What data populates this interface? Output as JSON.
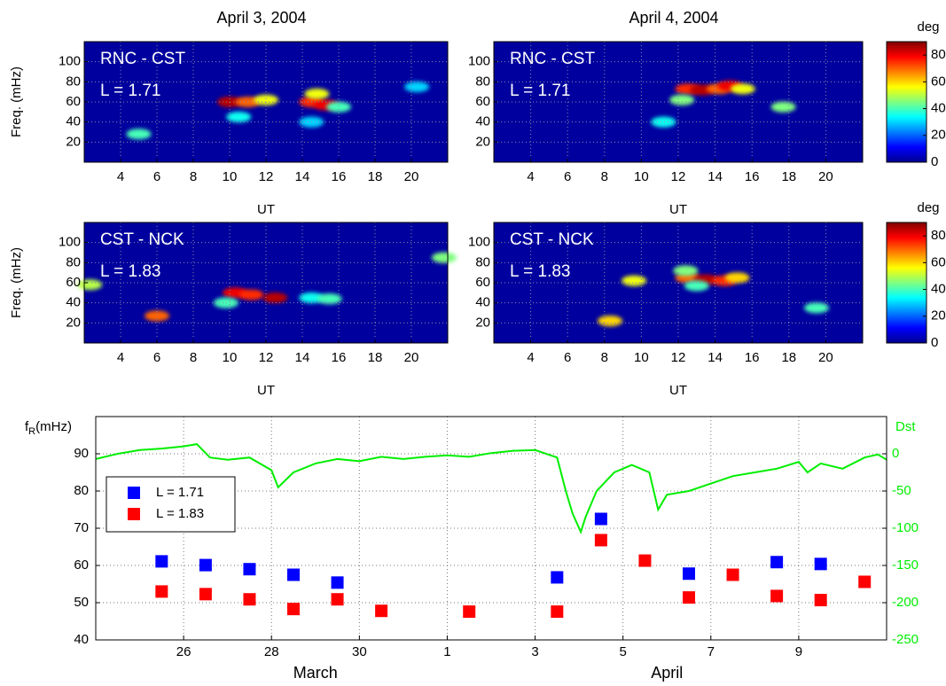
{
  "chart_data": [
    {
      "type": "spectrogram",
      "title": "April 3, 2004",
      "ylabel": "Freq. (mHz)",
      "xlabel": "UT",
      "annotations": [
        "RNC - CST",
        "L = 1.71"
      ],
      "xlim": [
        2,
        22
      ],
      "xticks": [
        4,
        6,
        8,
        10,
        12,
        14,
        16,
        18,
        20
      ],
      "ylim": [
        0,
        120
      ],
      "yticks": [
        20,
        40,
        60,
        80,
        100
      ],
      "grid": true,
      "colormap": "jet",
      "clim": [
        0,
        90
      ],
      "cells": {
        "ut": [
          10,
          11,
          12,
          14.5,
          15.3,
          14.8,
          16,
          10.5,
          20.3,
          5,
          14.5
        ],
        "freq": [
          60,
          60,
          62,
          60,
          57,
          68,
          55,
          45,
          75,
          28,
          40
        ],
        "values": [
          85,
          70,
          55,
          75,
          80,
          55,
          40,
          35,
          30,
          40,
          30
        ]
      }
    },
    {
      "type": "spectrogram",
      "title": "April 4, 2004",
      "xlabel": "UT",
      "annotations": [
        "RNC - CST",
        "L = 1.71"
      ],
      "xlim": [
        2,
        22
      ],
      "xticks": [
        4,
        6,
        8,
        10,
        12,
        14,
        16,
        18,
        20
      ],
      "ylim": [
        0,
        120
      ],
      "yticks": [
        20,
        40,
        60,
        80,
        100
      ],
      "grid": true,
      "colormap": "jet",
      "clim": [
        0,
        90
      ],
      "colorbar": {
        "label": "deg",
        "ticks": [
          0,
          20,
          40,
          60,
          80
        ]
      },
      "cells": {
        "ut": [
          12.5,
          13.3,
          14.2,
          14.8,
          12.2,
          15.5,
          11.2,
          17.7
        ],
        "freq": [
          73,
          72,
          73,
          76,
          62,
          73,
          40,
          55
        ],
        "values": [
          75,
          85,
          70,
          80,
          45,
          55,
          35,
          45
        ]
      }
    },
    {
      "type": "spectrogram",
      "ylabel": "Freq. (mHz)",
      "xlabel": "UT",
      "annotations": [
        "CST - NCK",
        "L = 1.83"
      ],
      "xlim": [
        2,
        22
      ],
      "xticks": [
        4,
        6,
        8,
        10,
        12,
        14,
        16,
        18,
        20
      ],
      "ylim": [
        0,
        120
      ],
      "yticks": [
        20,
        40,
        60,
        80,
        100
      ],
      "grid": true,
      "colormap": "jet",
      "clim": [
        0,
        90
      ],
      "cells": {
        "ut": [
          10.3,
          11.2,
          12.5,
          14.5,
          15.5,
          9.8,
          2.3,
          21.8,
          6
        ],
        "freq": [
          50,
          48,
          45,
          45,
          44,
          40,
          58,
          85,
          27
        ],
        "values": [
          80,
          75,
          85,
          35,
          40,
          40,
          50,
          45,
          70
        ]
      }
    },
    {
      "type": "spectrogram",
      "xlabel": "UT",
      "annotations": [
        "CST - NCK",
        "L = 1.83"
      ],
      "xlim": [
        2,
        22
      ],
      "xticks": [
        4,
        6,
        8,
        10,
        12,
        14,
        16,
        18,
        20
      ],
      "ylim": [
        0,
        120
      ],
      "yticks": [
        20,
        40,
        60,
        80,
        100
      ],
      "grid": true,
      "colormap": "jet",
      "clim": [
        0,
        90
      ],
      "colorbar": {
        "label": "deg",
        "ticks": [
          0,
          20,
          40,
          60,
          80
        ]
      },
      "cells": {
        "ut": [
          12.5,
          13.5,
          14.5,
          15.2,
          13,
          9.6,
          12.4,
          19.5,
          8.3
        ],
        "freq": [
          65,
          63,
          62,
          65,
          57,
          62,
          72,
          35,
          22
        ],
        "values": [
          70,
          85,
          75,
          60,
          40,
          55,
          45,
          40,
          60
        ]
      }
    },
    {
      "type": "scatter",
      "ylabel": {
        "base": "f",
        "sub": "R",
        "rest": "(mHz)"
      },
      "xlim": [
        24,
        42
      ],
      "xticks": [
        26,
        28,
        30,
        {
          "value": 32,
          "label": "1"
        },
        {
          "value": 34,
          "label": "3"
        },
        {
          "value": 36,
          "label": "5"
        },
        {
          "value": 38,
          "label": "7"
        },
        {
          "value": 40,
          "label": "9"
        }
      ],
      "months": [
        "March",
        "April"
      ],
      "ylim": [
        40,
        100
      ],
      "yticks": [
        40,
        50,
        60,
        70,
        80,
        90
      ],
      "y2lim": [
        -250,
        50
      ],
      "y2ticks": [
        -250,
        -200,
        -150,
        -100,
        -50,
        0
      ],
      "grid": true,
      "legend": "upper left",
      "series": [
        {
          "name": "L = 1.71",
          "color": "#0000ff",
          "marker": "square",
          "x": [
            25.5,
            26.5,
            27.5,
            28.5,
            29.5,
            34.5,
            35.5,
            37.5,
            39.5,
            40.5
          ],
          "values": [
            61.1,
            60.1,
            59,
            57.5,
            55.4,
            56.8,
            72.5,
            57.8,
            60.9,
            60.4
          ]
        },
        {
          "name": "L = 1.83",
          "color": "#ff0000",
          "marker": "square",
          "x": [
            25.5,
            26.5,
            27.5,
            28.5,
            29.5,
            30.5,
            32.5,
            34.5,
            35.5,
            36.5,
            37.5,
            38.5,
            39.5,
            40.5,
            41.5
          ],
          "values": [
            53,
            52.3,
            50.9,
            48.3,
            50.9,
            47.8,
            47.6,
            47.6,
            66.8,
            61.3,
            51.4,
            57.5,
            51.8,
            50.7,
            55.6
          ]
        },
        {
          "name": "Dst",
          "color": "#00ee00",
          "axis": "y2",
          "marker": "line",
          "x": [
            24,
            24.5,
            25,
            25.5,
            26,
            26.3,
            26.6,
            27,
            27.5,
            28,
            28.15,
            28.5,
            29,
            29.5,
            30,
            30.5,
            31,
            31.5,
            32,
            32.5,
            33,
            33.5,
            34,
            34.5,
            34.7,
            34.85,
            35.04,
            35.15,
            35.4,
            35.8,
            36.2,
            36.6,
            36.8,
            37,
            37.5,
            38,
            38.5,
            39,
            39.5,
            40,
            40.2,
            40.5,
            41,
            41.5,
            41.8,
            42
          ],
          "values": [
            -7,
            0,
            5,
            7,
            10,
            13,
            -5,
            -8,
            -5,
            -22,
            -45,
            -25,
            -13,
            -7,
            -10,
            -4,
            -7,
            -4,
            -2,
            -4,
            1,
            4,
            5,
            -5,
            -50,
            -80,
            -105,
            -85,
            -50,
            -25,
            -15,
            -25,
            -75,
            -55,
            -50,
            -40,
            -30,
            -25,
            -20,
            -11,
            -25,
            -13,
            -20,
            -5,
            -1,
            -8
          ]
        }
      ]
    }
  ]
}
